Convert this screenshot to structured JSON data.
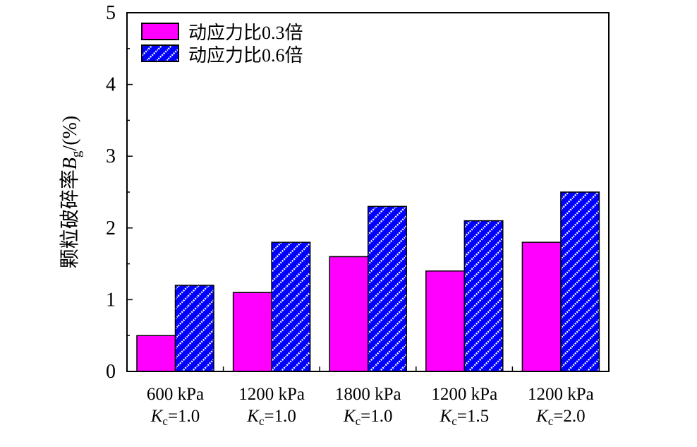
{
  "chart_data": {
    "type": "bar",
    "categories": [
      {
        "line1": "600 kPa",
        "k": "K",
        "sub": "c",
        "rest": "=1.0"
      },
      {
        "line1": "1200 kPa",
        "k": "K",
        "sub": "c",
        "rest": "=1.0"
      },
      {
        "line1": "1800 kPa",
        "k": "K",
        "sub": "c",
        "rest": "=1.0"
      },
      {
        "line1": "1200 kPa",
        "k": "K",
        "sub": "c",
        "rest": "=1.5"
      },
      {
        "line1": "1200 kPa",
        "k": "K",
        "sub": "c",
        "rest": "=2.0"
      }
    ],
    "series": [
      {
        "name": "动应力比0.3倍",
        "color": "#ff00ff",
        "pattern": "solid",
        "values": [
          0.5,
          1.1,
          1.6,
          1.4,
          1.8
        ]
      },
      {
        "name": "动应力比0.6倍",
        "color": "#0000ff",
        "pattern": "diagonal-hatch",
        "values": [
          1.2,
          1.8,
          2.3,
          2.1,
          2.5
        ]
      }
    ],
    "ylabel": {
      "text": "颗粒破碎率",
      "var": "B",
      "sub": "g",
      "unit": "/(%)"
    },
    "ylim": [
      0,
      5
    ],
    "yticks": [
      "0",
      "1",
      "2",
      "3",
      "4",
      "5"
    ],
    "legend_position": "top-left",
    "grid": false
  }
}
